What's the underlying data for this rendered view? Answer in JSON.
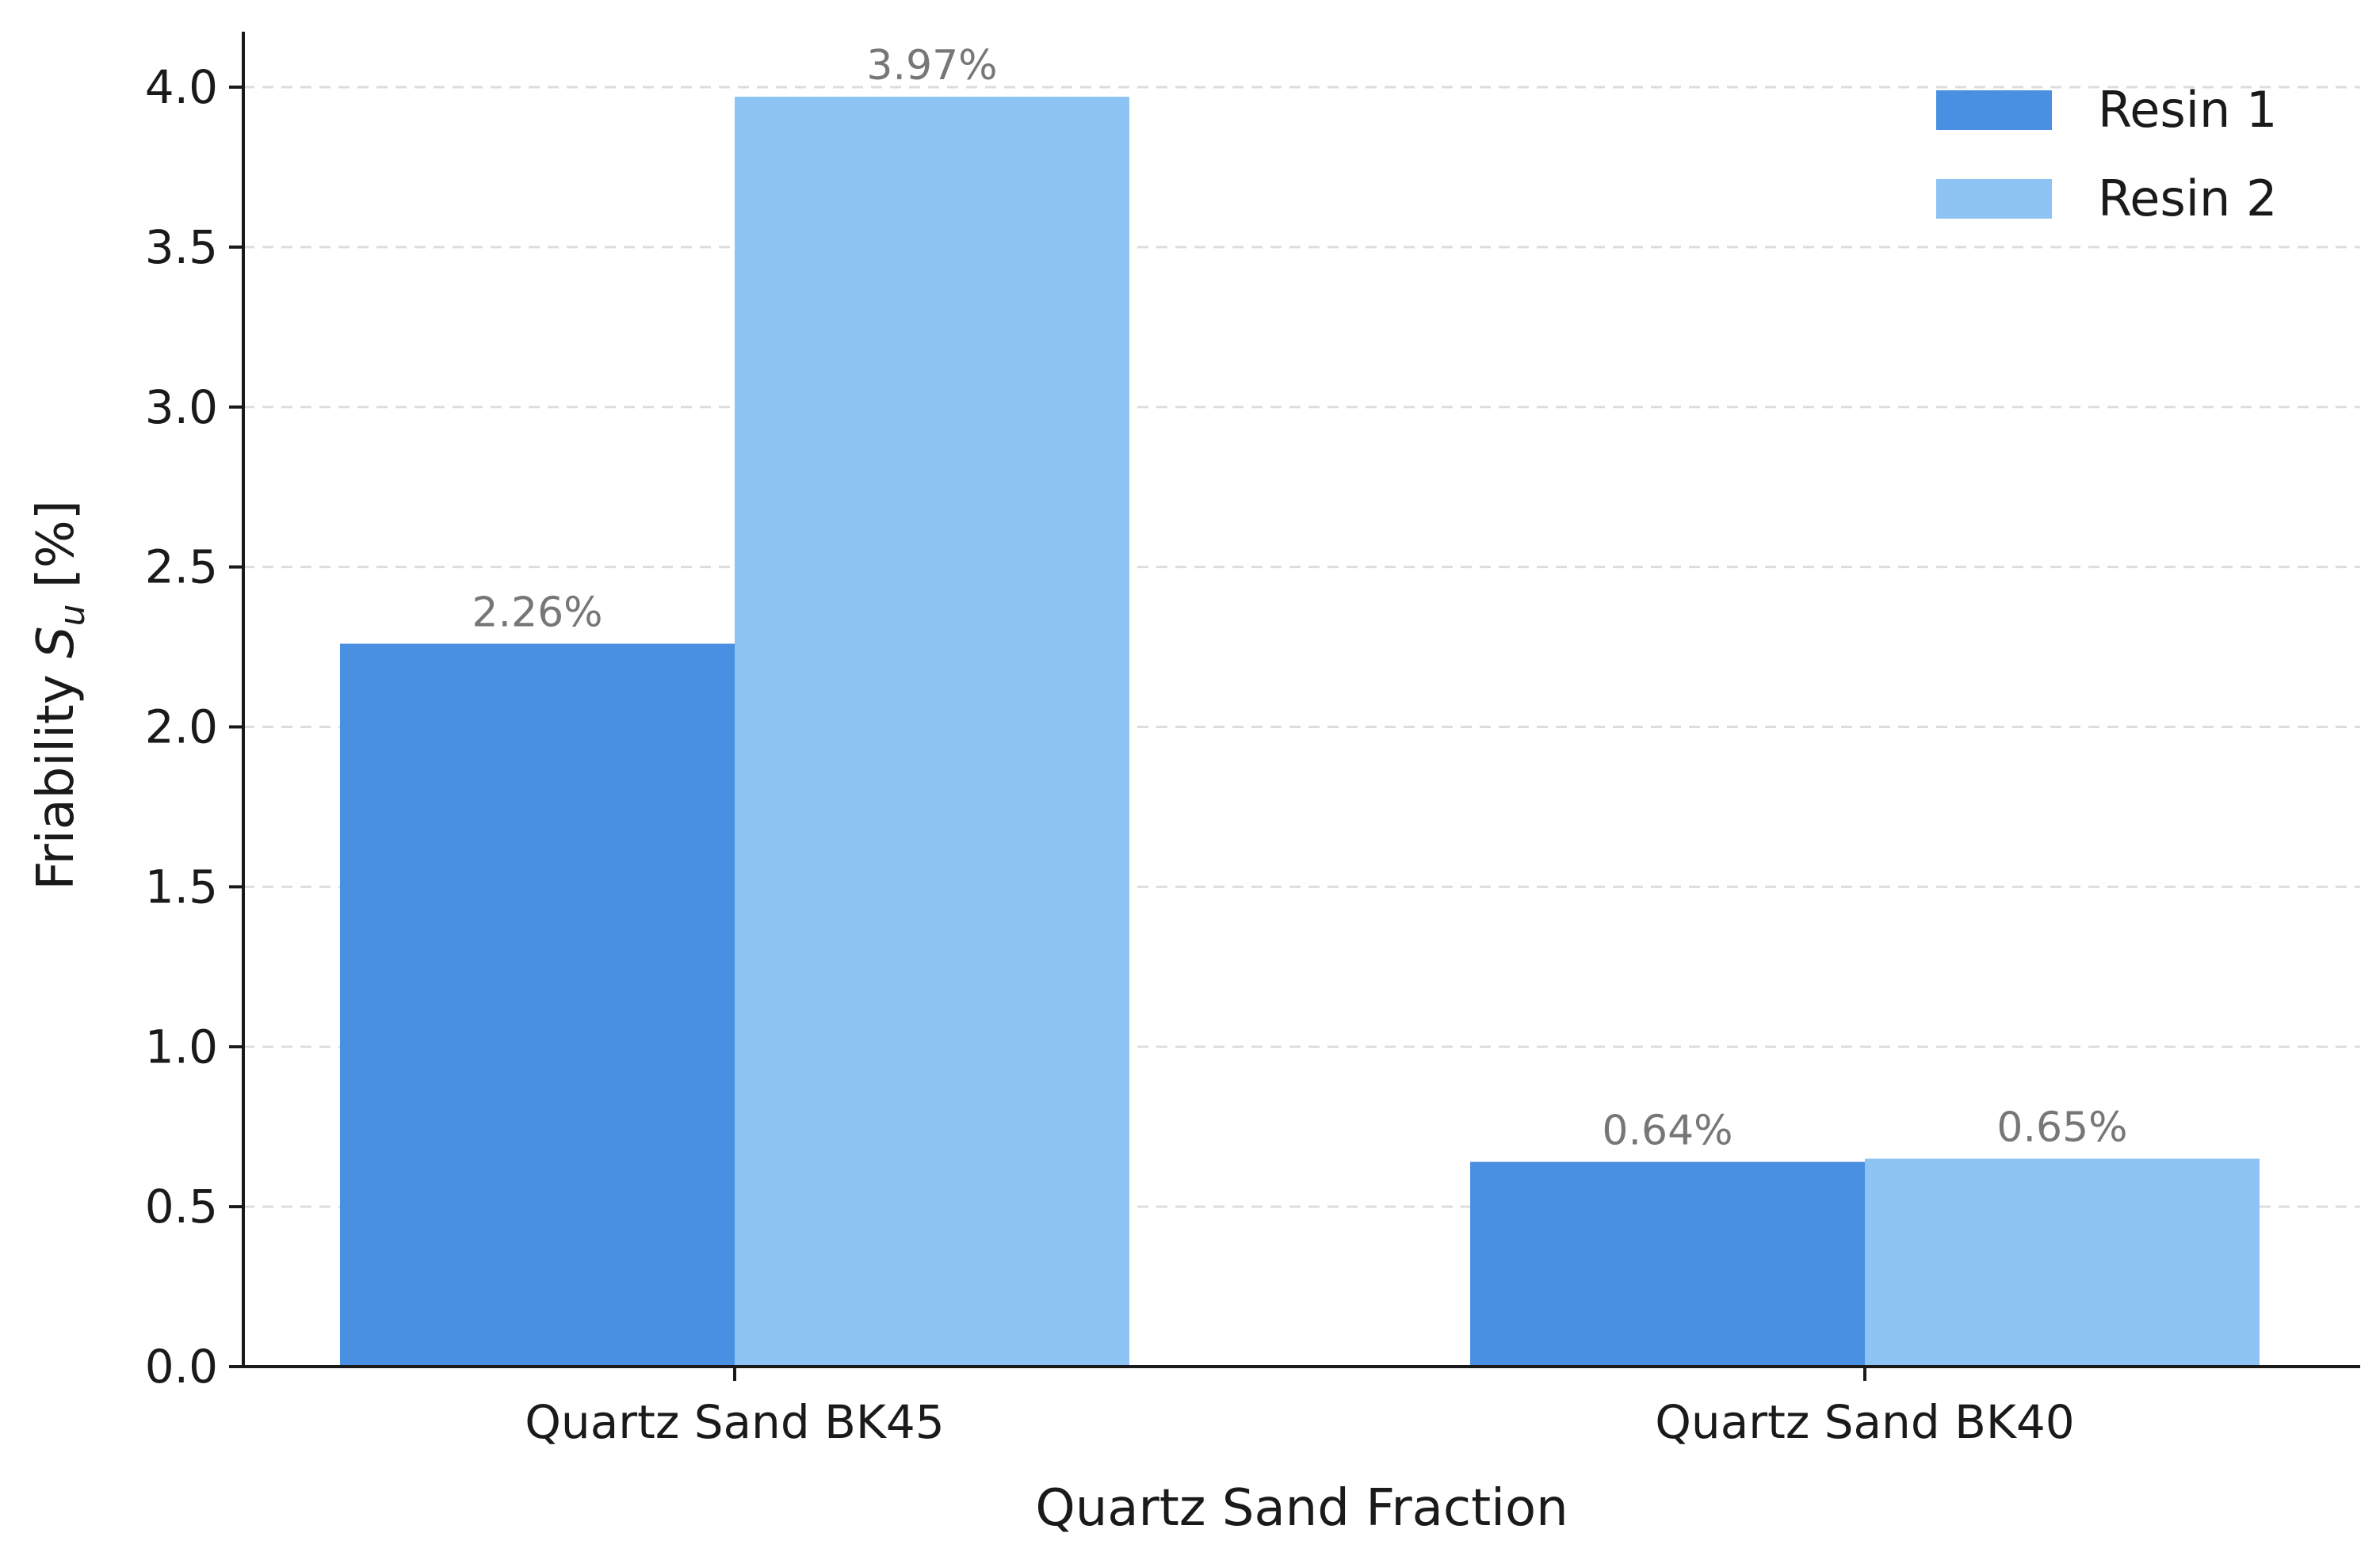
{
  "chart_data": {
    "type": "bar",
    "categories": [
      "Quartz Sand BK45",
      "Quartz Sand BK40"
    ],
    "series": [
      {
        "name": "Resin 1",
        "values": [
          2.26,
          0.64
        ],
        "labels": [
          "2.26%",
          "0.64%"
        ],
        "color": "#4a90e2"
      },
      {
        "name": "Resin 2",
        "values": [
          3.97,
          0.65
        ],
        "labels": [
          "3.97%",
          "0.65%"
        ],
        "color": "#8ec4f4"
      }
    ],
    "title": "",
    "xlabel": "Quartz Sand Fraction",
    "ylabel_prefix": "Friability ",
    "ylabel_symbol": "S",
    "ylabel_subscript": "u",
    "ylabel_suffix": " [%]",
    "ylim": [
      0,
      4.0
    ],
    "yticks": [
      0.0,
      0.5,
      1.0,
      1.5,
      2.0,
      2.5,
      3.0,
      3.5,
      4.0
    ],
    "ytick_labels": [
      "0.0",
      "0.5",
      "1.0",
      "1.5",
      "2.0",
      "2.5",
      "3.0",
      "3.5",
      "4.0"
    ],
    "grid": "horizontal-dashed",
    "legend": "top-right"
  }
}
